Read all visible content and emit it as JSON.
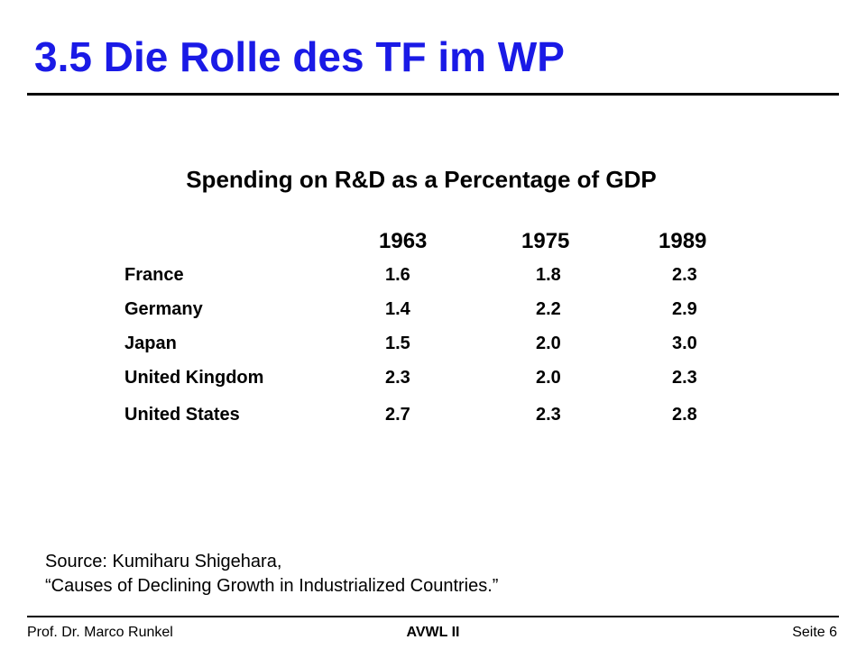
{
  "slide": {
    "title": "3.5 Die Rolle des TF im WP"
  },
  "table": {
    "title": "Spending on R&D as a Percentage of GDP",
    "years": [
      "1963",
      "1975",
      "1989"
    ],
    "rows": [
      {
        "country": "France",
        "values": [
          "1.6",
          "1.8",
          "2.3"
        ]
      },
      {
        "country": "Germany",
        "values": [
          "1.4",
          "2.2",
          "2.9"
        ]
      },
      {
        "country": "Japan",
        "values": [
          "1.5",
          "2.0",
          "3.0"
        ]
      },
      {
        "country": "United Kingdom",
        "values": [
          "2.3",
          "2.0",
          "2.3"
        ]
      },
      {
        "country": "United States",
        "values": [
          "2.7",
          "2.3",
          "2.8"
        ]
      }
    ]
  },
  "source": {
    "line1": "Source:  Kumiharu Shigehara,",
    "line2": "“Causes of Declining Growth in Industrialized Countries.”"
  },
  "footer": {
    "author": "Prof. Dr. Marco Runkel",
    "course": "AVWL II",
    "page": "Seite 6"
  },
  "colors": {
    "title": "#1a1ae6",
    "text": "#000000",
    "background": "#ffffff"
  }
}
